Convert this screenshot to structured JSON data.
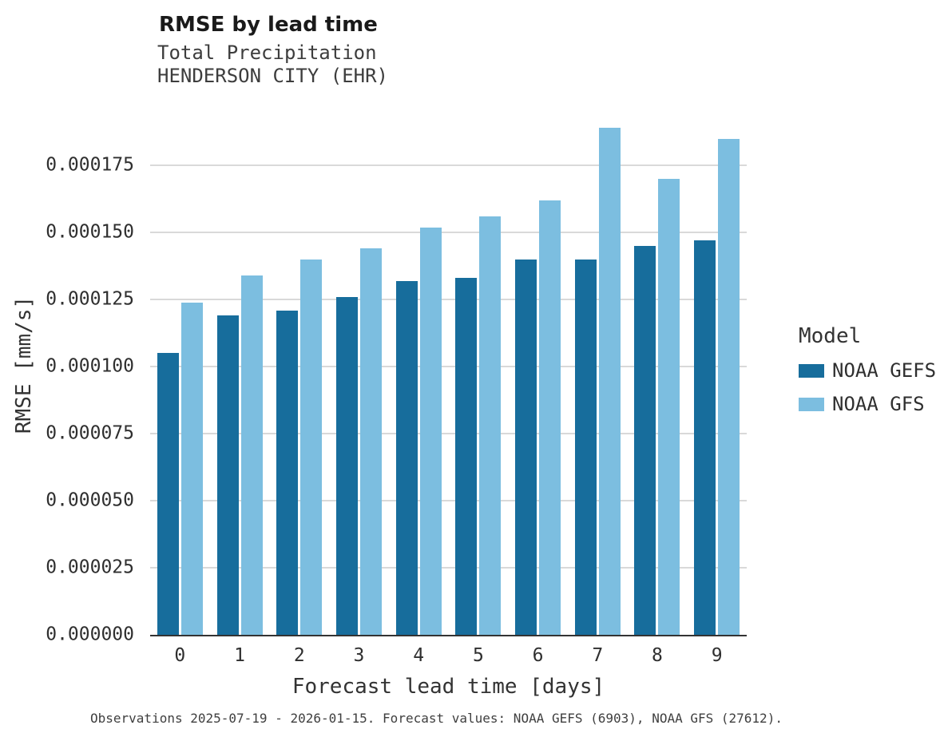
{
  "chart_data": {
    "type": "bar",
    "title": "RMSE by lead time",
    "subtitle_lines": [
      "Total Precipitation",
      "HENDERSON CITY (EHR)"
    ],
    "xlabel": "Forecast lead time [days]",
    "ylabel": "RMSE [mm/s]",
    "caption": "Observations 2025-07-19 - 2026-01-15. Forecast values: NOAA GEFS (6903), NOAA GFS (27612).",
    "categories": [
      "0",
      "1",
      "2",
      "3",
      "4",
      "5",
      "6",
      "7",
      "8",
      "9"
    ],
    "series": [
      {
        "name": "NOAA GEFS",
        "color": "#176d9c",
        "values": [
          0.000105,
          0.000119,
          0.000121,
          0.000126,
          0.000132,
          0.000133,
          0.00014,
          0.00014,
          0.000145,
          0.000147
        ]
      },
      {
        "name": "NOAA GFS",
        "color": "#7cbee0",
        "values": [
          0.000124,
          0.000134,
          0.00014,
          0.000144,
          0.000152,
          0.000156,
          0.000162,
          0.000189,
          0.00017,
          0.000185
        ]
      }
    ],
    "ylim": [
      0,
      0.000201
    ],
    "yticks": [
      0,
      2.5e-05,
      5e-05,
      7.5e-05,
      0.0001,
      0.000125,
      0.00015,
      0.000175
    ],
    "ytick_labels": [
      "0.000000",
      "0.000025",
      "0.000050",
      "0.000075",
      "0.000100",
      "0.000125",
      "0.000150",
      "0.000175"
    ],
    "grid": "horizontal",
    "legend": {
      "title": "Model",
      "position": "right"
    },
    "colors": {
      "background": "#ffffff",
      "gridline": "#d9d9d9",
      "axis_line": "#333333"
    }
  }
}
